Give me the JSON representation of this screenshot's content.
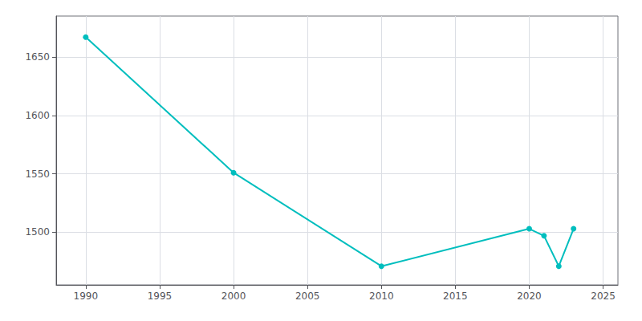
{
  "chart_data": {
    "type": "line",
    "x": [
      1990,
      2000,
      2010,
      2020,
      2021,
      2022,
      2023
    ],
    "values": [
      1667,
      1551,
      1471,
      1503,
      1497,
      1471,
      1503
    ],
    "color": "#00BEBE",
    "marker": "circle",
    "xlim": [
      1988,
      2026
    ],
    "ylim": [
      1455,
      1685
    ],
    "xticks": [
      1990,
      1995,
      2000,
      2005,
      2010,
      2015,
      2020,
      2025
    ],
    "yticks": [
      1500,
      1550,
      1600,
      1650
    ],
    "grid": true
  }
}
